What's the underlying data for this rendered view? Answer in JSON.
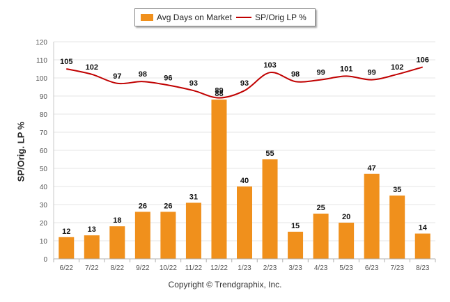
{
  "copyright": "Copyright © Trendgraphix, Inc.",
  "chart_data": {
    "type": "bar",
    "ylabel": "SP/Orig. LP %",
    "ylim": [
      0,
      120
    ],
    "yticks": [
      0,
      10,
      20,
      30,
      40,
      50,
      60,
      70,
      80,
      90,
      100,
      110,
      120
    ],
    "grid": true,
    "legend_position": "top-center",
    "categories": [
      "6/22",
      "7/22",
      "8/22",
      "9/22",
      "10/22",
      "11/22",
      "12/22",
      "1/23",
      "2/23",
      "3/23",
      "4/23",
      "5/23",
      "6/23",
      "7/23",
      "8/23"
    ],
    "series": [
      {
        "name": "Avg Days on Market",
        "kind": "bar",
        "color": "#f0901c",
        "values": [
          12,
          13,
          18,
          26,
          26,
          31,
          88,
          40,
          55,
          15,
          25,
          20,
          47,
          35,
          14
        ]
      },
      {
        "name": "SP/Orig LP %",
        "kind": "line",
        "color": "#c00000",
        "values": [
          105,
          102,
          97,
          98,
          96,
          93,
          89,
          93,
          103,
          98,
          99,
          101,
          99,
          102,
          106
        ]
      }
    ]
  }
}
